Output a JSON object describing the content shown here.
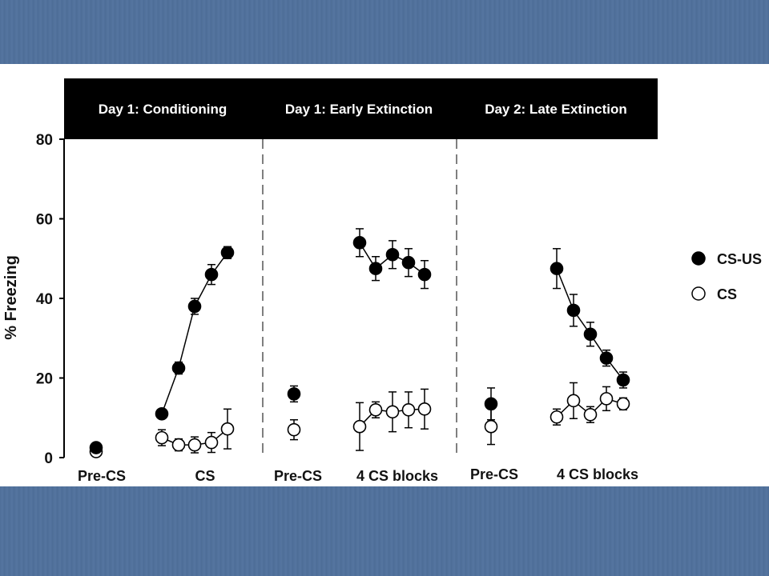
{
  "chart_data": {
    "type": "line",
    "ylabel": "% Freezing",
    "ylim": [
      0,
      80
    ],
    "yticks": [
      0,
      20,
      40,
      60,
      80
    ],
    "grid": false,
    "legend_position": "right",
    "panels": [
      {
        "title": "Day 1: Conditioning",
        "categories": [
          "Pre-CS",
          "CS"
        ],
        "pre_cs": [
          {
            "series": "CS-US",
            "value": 2.5,
            "err": 0
          },
          {
            "series": "CS",
            "value": 1.5,
            "err": 0
          }
        ],
        "blocks": [
          {
            "series": "CS-US",
            "values": [
              11,
              22.5,
              38,
              46,
              51.5
            ],
            "errors": [
              1,
              1.5,
              2,
              2.5,
              1.5
            ]
          },
          {
            "series": "CS",
            "values": [
              5,
              3.2,
              3.2,
              3.8,
              7.2
            ],
            "errors": [
              2,
              1.5,
              2,
              2.5,
              5
            ]
          }
        ]
      },
      {
        "title": "Day 1: Early Extinction",
        "categories": [
          "Pre-CS",
          "4 CS blocks"
        ],
        "pre_cs": [
          {
            "series": "CS-US",
            "value": 16,
            "err": 2
          },
          {
            "series": "CS",
            "value": 7,
            "err": 2.5
          }
        ],
        "blocks": [
          {
            "series": "CS-US",
            "values": [
              54,
              47.5,
              51,
              49,
              46
            ],
            "errors": [
              3.5,
              3,
              3.5,
              3.5,
              3.5
            ]
          },
          {
            "series": "CS",
            "values": [
              7.8,
              12,
              11.5,
              12,
              12.2
            ],
            "errors": [
              6,
              2,
              5,
              4.5,
              5
            ]
          }
        ]
      },
      {
        "title": "Day 2: Late Extinction",
        "categories": [
          "Pre-CS",
          "4 CS blocks"
        ],
        "pre_cs": [
          {
            "series": "CS-US",
            "value": 13.5,
            "err": 4
          },
          {
            "series": "CS",
            "value": 7.8,
            "err": 4.5
          }
        ],
        "blocks": [
          {
            "series": "CS-US",
            "values": [
              47.5,
              37,
              31,
              25,
              19.5
            ],
            "errors": [
              5,
              4,
              3,
              2,
              2
            ]
          },
          {
            "series": "CS",
            "values": [
              10.2,
              14.3,
              10.8,
              14.8,
              13.5
            ],
            "errors": [
              2,
              4.5,
              2,
              3,
              1.5
            ]
          }
        ]
      }
    ],
    "legend": [
      {
        "name": "CS-US",
        "marker": "filled-circle"
      },
      {
        "name": "CS",
        "marker": "open-circle"
      }
    ]
  },
  "colors": {
    "header_bar": "#000000",
    "background_band": "#50709a",
    "marker": "#000000"
  }
}
